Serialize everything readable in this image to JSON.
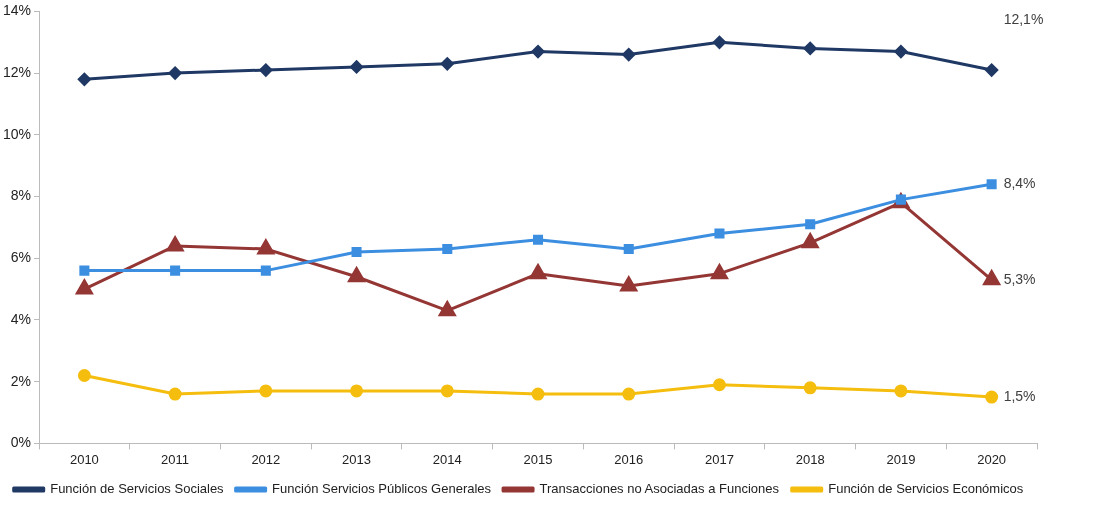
{
  "chart_data": {
    "type": "line",
    "categories": [
      "2010",
      "2011",
      "2012",
      "2013",
      "2014",
      "2015",
      "2016",
      "2017",
      "2018",
      "2019",
      "2020"
    ],
    "series": [
      {
        "name": "Función de Servicios Sociales",
        "color": "#1f3864",
        "marker": "diamond",
        "values": [
          11.8,
          12.0,
          12.1,
          12.2,
          12.3,
          12.7,
          12.6,
          13.0,
          12.8,
          12.7,
          12.1
        ],
        "value_labels": [
          null,
          null,
          null,
          null,
          null,
          null,
          null,
          null,
          null,
          null,
          "12,1%"
        ]
      },
      {
        "name": "Función Servicios Públicos Generales",
        "color": "#3c8ee0",
        "marker": "square",
        "values": [
          5.6,
          5.6,
          5.6,
          6.2,
          6.3,
          6.6,
          6.3,
          6.8,
          7.1,
          7.9,
          8.4
        ],
        "value_labels": [
          null,
          null,
          null,
          null,
          null,
          null,
          null,
          null,
          null,
          null,
          "8,4%"
        ]
      },
      {
        "name": "Transacciones no Asociadas a Funciones",
        "color": "#943634",
        "marker": "triangle",
        "values": [
          5.0,
          6.4,
          6.3,
          5.4,
          4.3,
          5.5,
          5.1,
          5.5,
          6.5,
          7.8,
          5.3
        ],
        "value_labels": [
          null,
          null,
          null,
          null,
          null,
          null,
          null,
          null,
          null,
          null,
          "5,3%"
        ]
      },
      {
        "name": "Función de Servicios Económicos",
        "color": "#f5be0f",
        "marker": "circle",
        "values": [
          2.2,
          1.6,
          1.7,
          1.7,
          1.7,
          1.6,
          1.6,
          1.9,
          1.8,
          1.7,
          1.5
        ],
        "value_labels": [
          null,
          null,
          null,
          null,
          null,
          null,
          null,
          null,
          null,
          null,
          "1,5%"
        ]
      }
    ],
    "ylim": [
      0,
      14
    ],
    "yticks": [
      {
        "value": 0,
        "label": "0%"
      },
      {
        "value": 2,
        "label": "2%"
      },
      {
        "value": 4,
        "label": "4%"
      },
      {
        "value": 6,
        "label": "6%"
      },
      {
        "value": 8,
        "label": "8%"
      },
      {
        "value": 10,
        "label": "10%"
      },
      {
        "value": 12,
        "label": "12%"
      },
      {
        "value": 14,
        "label": "14%"
      }
    ],
    "grid": false,
    "legend": "bottom",
    "line_style": "solid"
  }
}
